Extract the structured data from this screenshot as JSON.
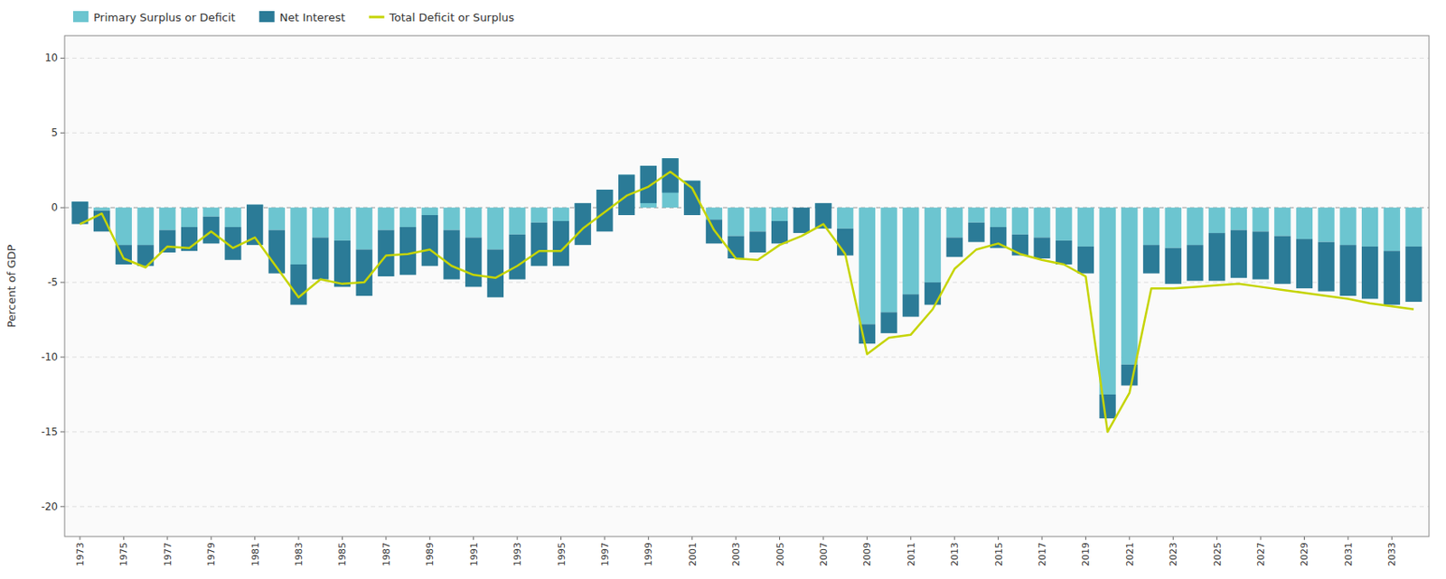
{
  "chart_data": {
    "type": "bar",
    "stacked": true,
    "y_label": "Percent of GDP",
    "x": [
      1973,
      1974,
      1975,
      1976,
      1977,
      1978,
      1979,
      1980,
      1981,
      1982,
      1983,
      1984,
      1985,
      1986,
      1987,
      1988,
      1989,
      1990,
      1991,
      1992,
      1993,
      1994,
      1995,
      1996,
      1997,
      1998,
      1999,
      2000,
      2001,
      2002,
      2003,
      2004,
      2005,
      2006,
      2007,
      2008,
      2009,
      2010,
      2011,
      2012,
      2013,
      2014,
      2015,
      2016,
      2017,
      2018,
      2019,
      2020,
      2021,
      2022,
      2023,
      2024,
      2025,
      2026,
      2027,
      2028,
      2029,
      2030,
      2031,
      2032,
      2033,
      2034
    ],
    "xlim": [
      1972.3,
      2034.7
    ],
    "xticks": [
      1973,
      1975,
      1977,
      1979,
      1981,
      1983,
      1985,
      1987,
      1989,
      1991,
      1993,
      1995,
      1997,
      1999,
      2001,
      2003,
      2005,
      2007,
      2009,
      2011,
      2013,
      2015,
      2017,
      2019,
      2021,
      2023,
      2025,
      2027,
      2029,
      2031,
      2033
    ],
    "ylim": [
      -22,
      11.5
    ],
    "yticks": [
      10,
      5,
      0,
      -5,
      -10,
      -15,
      -20
    ],
    "grid": true,
    "legend": "upper left",
    "series": [
      {
        "name": "Primary Surplus or Deficit",
        "type": "bar",
        "color": "#6cc5d0",
        "values": [
          0.4,
          -0.2,
          -2.5,
          -2.5,
          -1.5,
          -1.3,
          -0.6,
          -1.3,
          0.2,
          -1.5,
          -3.8,
          -2.0,
          -2.2,
          -2.8,
          -1.5,
          -1.3,
          -0.5,
          -1.5,
          -2.0,
          -2.8,
          -1.8,
          -1.0,
          -0.9,
          0.3,
          1.2,
          2.2,
          2.8,
          3.3,
          1.8,
          -0.8,
          -1.9,
          -1.6,
          -0.9,
          0.0,
          0.3,
          -1.4,
          -7.8,
          -7.0,
          -5.8,
          -5.0,
          -2.0,
          -1.0,
          -1.3,
          -1.8,
          -2.0,
          -2.2,
          -2.6,
          -12.5,
          -10.5,
          -2.5,
          -2.7,
          -2.5,
          -1.7,
          -1.5,
          -1.6,
          -1.9,
          -2.1,
          -2.3,
          -2.5,
          -2.6,
          -2.9,
          -2.6
        ]
      },
      {
        "name": "Net Interest",
        "type": "bar",
        "color": "#2b7b97",
        "values": [
          -1.5,
          -1.4,
          -1.3,
          -1.4,
          -1.5,
          -1.6,
          -1.8,
          -2.2,
          -2.7,
          -2.9,
          -2.7,
          -2.8,
          -3.1,
          -3.1,
          -3.1,
          -3.2,
          -3.4,
          -3.3,
          -3.3,
          -3.2,
          -3.0,
          -2.9,
          -3.0,
          -2.8,
          -2.8,
          -2.7,
          -2.5,
          -2.3,
          -2.3,
          -1.6,
          -1.5,
          -1.4,
          -1.5,
          -1.7,
          -1.7,
          -1.8,
          -1.3,
          -1.4,
          -1.5,
          -1.5,
          -1.3,
          -1.3,
          -1.4,
          -1.4,
          -1.4,
          -1.6,
          -1.8,
          -1.6,
          -1.4,
          -1.9,
          -2.4,
          -2.4,
          -3.2,
          -3.2,
          -3.2,
          -3.2,
          -3.3,
          -3.3,
          -3.4,
          -3.5,
          -3.6,
          -3.7
        ]
      },
      {
        "name": "Total Deficit or Surplus",
        "type": "line",
        "color": "#c5d400",
        "values": [
          -1.1,
          -0.4,
          -3.4,
          -4.0,
          -2.6,
          -2.7,
          -1.6,
          -2.7,
          -2.0,
          -4.0,
          -6.0,
          -4.8,
          -5.1,
          -5.0,
          -3.2,
          -3.1,
          -2.8,
          -3.9,
          -4.5,
          -4.7,
          -3.9,
          -2.9,
          -2.9,
          -1.4,
          -0.3,
          0.8,
          1.4,
          2.4,
          1.3,
          -1.5,
          -3.4,
          -3.5,
          -2.5,
          -1.9,
          -1.1,
          -3.1,
          -9.8,
          -8.7,
          -8.5,
          -6.8,
          -4.1,
          -2.8,
          -2.4,
          -3.1,
          -3.5,
          -3.8,
          -4.6,
          -15.0,
          -12.4,
          -5.4,
          -5.4,
          -5.3,
          -5.2,
          -5.1,
          -5.3,
          -5.5,
          -5.7,
          -5.9,
          -6.1,
          -6.4,
          -6.6,
          -6.8
        ]
      }
    ]
  }
}
